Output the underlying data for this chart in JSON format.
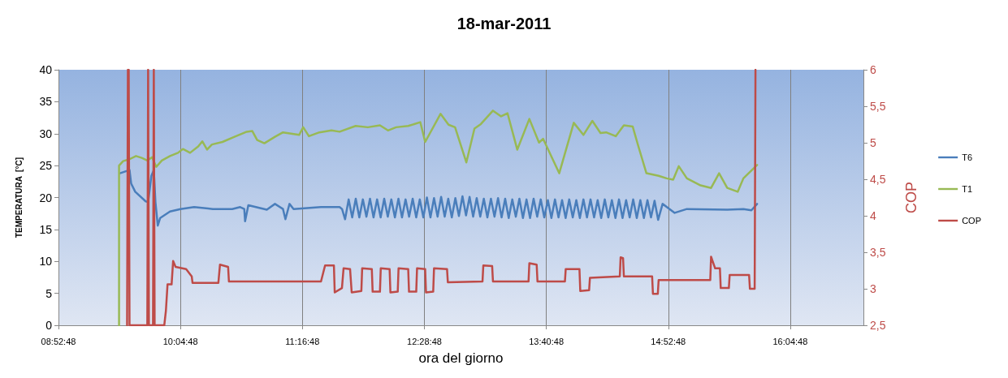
{
  "chart_data": {
    "type": "line",
    "title": "18-mar-2011",
    "xlabel": "ora del giorno",
    "ylabel": "TEMPERATURA  [°C]",
    "y2label": "COP",
    "xlim": [
      8.88,
      16.8
    ],
    "xticks": [
      {
        "value": 8.88,
        "label": "08:52:48"
      },
      {
        "value": 10.08,
        "label": "10:04:48"
      },
      {
        "value": 11.28,
        "label": "11:16:48"
      },
      {
        "value": 12.48,
        "label": "12:28:48"
      },
      {
        "value": 13.68,
        "label": "13:40:48"
      },
      {
        "value": 14.88,
        "label": "14:52:48"
      },
      {
        "value": 16.08,
        "label": "16:04:48"
      }
    ],
    "ylim": [
      0,
      40
    ],
    "yticks": [
      0,
      5,
      10,
      15,
      20,
      25,
      30,
      35,
      40
    ],
    "y2lim": [
      2.5,
      6
    ],
    "y2ticks": [
      {
        "value": 2.5,
        "label": "2,5"
      },
      {
        "value": 3,
        "label": "3"
      },
      {
        "value": 3.5,
        "label": "3,5"
      },
      {
        "value": 4,
        "label": "4"
      },
      {
        "value": 4.5,
        "label": "4,5"
      },
      {
        "value": 5,
        "label": "5"
      },
      {
        "value": 5.5,
        "label": "5,5"
      },
      {
        "value": 6,
        "label": "6"
      }
    ],
    "grid": "x",
    "legend": "right",
    "marker": "none",
    "line_style": "solid",
    "series": [
      {
        "name": "T6",
        "color": "#4a7ebb",
        "x": [
          9.484,
          9.579,
          9.595,
          9.635,
          9.738,
          9.762,
          9.794,
          9.818,
          9.834,
          9.857,
          9.881,
          9.977,
          10.08,
          10.215,
          10.398,
          10.589,
          10.668,
          10.708,
          10.716,
          10.748,
          10.93,
          11.01,
          11.089,
          11.113,
          11.153,
          11.193,
          11.463,
          11.646,
          11.67,
          11.7,
          11.735,
          11.77,
          11.805,
          11.84,
          11.875,
          11.91,
          11.945,
          11.98,
          12.015,
          12.05,
          12.085,
          12.12,
          12.155,
          12.19,
          12.225,
          12.26,
          12.295,
          12.33,
          12.365,
          12.4,
          12.435,
          12.47,
          12.505,
          12.54,
          12.575,
          12.61,
          12.645,
          12.68,
          12.715,
          12.75,
          12.785,
          12.82,
          12.855,
          12.89,
          12.925,
          12.96,
          12.995,
          13.03,
          13.065,
          13.1,
          13.135,
          13.17,
          13.205,
          13.24,
          13.275,
          13.31,
          13.345,
          13.38,
          13.415,
          13.45,
          13.485,
          13.52,
          13.555,
          13.59,
          13.625,
          13.66,
          13.695,
          13.73,
          13.765,
          13.8,
          13.835,
          13.87,
          13.905,
          13.94,
          13.975,
          14.01,
          14.045,
          14.08,
          14.115,
          14.15,
          14.185,
          14.22,
          14.255,
          14.29,
          14.325,
          14.36,
          14.395,
          14.43,
          14.465,
          14.5,
          14.535,
          14.57,
          14.605,
          14.64,
          14.675,
          14.71,
          14.745,
          14.78,
          14.824,
          14.943,
          15.063,
          15.46,
          15.619,
          15.698,
          15.754
        ],
        "values": [
          23.8,
          24.3,
          22.2,
          20.9,
          19.4,
          19.3,
          23.4,
          24.3,
          19.3,
          15.6,
          16.8,
          17.8,
          18.2,
          18.5,
          18.2,
          18.2,
          18.5,
          18.2,
          16.3,
          18.8,
          18.1,
          19.0,
          18.2,
          16.6,
          19.0,
          18.2,
          18.5,
          18.5,
          18.2,
          16.6,
          19.7,
          16.9,
          19.8,
          16.9,
          19.7,
          17.0,
          19.8,
          16.9,
          19.7,
          16.9,
          19.8,
          17.0,
          19.7,
          16.9,
          19.8,
          16.9,
          19.7,
          17.0,
          19.8,
          16.9,
          19.7,
          16.9,
          20.0,
          16.9,
          19.9,
          17.0,
          20.1,
          17.0,
          19.8,
          16.9,
          19.9,
          17.1,
          20.2,
          17.2,
          20.1,
          17.0,
          19.9,
          17.0,
          19.8,
          16.9,
          19.8,
          17.0,
          19.9,
          16.9,
          19.8,
          16.8,
          19.7,
          17.0,
          19.8,
          16.8,
          19.7,
          16.8,
          19.8,
          17.0,
          19.7,
          16.9,
          19.6,
          16.8,
          19.7,
          16.9,
          19.6,
          16.8,
          19.7,
          16.9,
          19.6,
          16.8,
          19.7,
          16.9,
          19.7,
          16.9,
          19.6,
          16.8,
          19.7,
          16.9,
          19.6,
          16.8,
          19.7,
          16.8,
          19.6,
          16.9,
          19.7,
          16.8,
          19.6,
          16.8,
          19.6,
          16.9,
          19.5,
          16.5,
          19.0,
          17.6,
          18.2,
          18.1,
          18.2,
          18.0,
          19.0
        ]
      },
      {
        "name": "T1",
        "color": "#98b954",
        "x": [
          9.476,
          9.476,
          9.516,
          9.579,
          9.643,
          9.699,
          9.754,
          9.802,
          9.842,
          9.897,
          9.977,
          10.056,
          10.104,
          10.175,
          10.255,
          10.295,
          10.342,
          10.39,
          10.493,
          10.612,
          10.732,
          10.787,
          10.835,
          10.906,
          11.01,
          11.089,
          11.169,
          11.248,
          11.288,
          11.344,
          11.447,
          11.566,
          11.646,
          11.804,
          11.924,
          12.043,
          12.122,
          12.202,
          12.321,
          12.44,
          12.488,
          12.639,
          12.718,
          12.782,
          12.893,
          12.973,
          13.036,
          13.155,
          13.235,
          13.298,
          13.394,
          13.513,
          13.608,
          13.648,
          13.807,
          13.95,
          14.045,
          14.133,
          14.213,
          14.268,
          14.363,
          14.443,
          14.53,
          14.586,
          14.665,
          14.785,
          14.864,
          14.928,
          14.983,
          15.063,
          15.198,
          15.301,
          15.38,
          15.46,
          15.563,
          15.619,
          15.754
        ],
        "values": [
          0,
          25,
          25.7,
          26,
          26.5,
          26.2,
          25.8,
          26.3,
          24.8,
          25.8,
          26.5,
          27,
          27.6,
          27,
          28,
          28.8,
          27.5,
          28.3,
          28.7,
          29.5,
          30.3,
          30.4,
          29,
          28.5,
          29.5,
          30.2,
          30,
          29.8,
          31,
          29.6,
          30.2,
          30.5,
          30.3,
          31.2,
          31,
          31.3,
          30.5,
          31,
          31.2,
          31.8,
          28.7,
          33.1,
          31.4,
          31,
          25.5,
          30.8,
          31.5,
          33.6,
          32.7,
          33.2,
          27.5,
          32.3,
          28.6,
          29.2,
          23.8,
          31.7,
          29.8,
          32,
          30.1,
          30.2,
          29.6,
          31.3,
          31.1,
          28,
          23.8,
          23.4,
          23,
          22.8,
          24.9,
          23,
          21.9,
          21.5,
          23.8,
          21.5,
          20.9,
          23,
          25.1
        ]
      },
      {
        "name": "COP",
        "color": "#be4b48",
        "axis": "y2",
        "x": [
          9.555,
          9.563,
          9.571,
          9.579,
          9.754,
          9.762,
          9.77,
          9.81,
          9.818,
          9.826,
          9.921,
          9.937,
          9.953,
          9.993,
          10.008,
          10.032,
          10.136,
          10.191,
          10.199,
          10.453,
          10.469,
          10.549,
          10.557,
          11.463,
          11.503,
          11.59,
          11.598,
          11.669,
          11.685,
          11.749,
          11.765,
          11.86,
          11.868,
          11.963,
          11.971,
          12.043,
          12.051,
          12.138,
          12.146,
          12.218,
          12.226,
          12.321,
          12.329,
          12.4,
          12.408,
          12.488,
          12.496,
          12.567,
          12.575,
          12.703,
          12.711,
          13.052,
          13.06,
          13.147,
          13.155,
          13.505,
          13.513,
          13.585,
          13.593,
          13.863,
          13.871,
          14.006,
          14.014,
          14.101,
          14.109,
          14.403,
          14.411,
          14.435,
          14.443,
          14.721,
          14.729,
          14.777,
          14.785,
          15.293,
          15.301,
          15.341,
          15.388,
          15.396,
          15.476,
          15.484,
          15.675,
          15.683,
          15.73,
          15.738
        ],
        "values": [
          2.5,
          6,
          6,
          2.5,
          2.5,
          6,
          2.5,
          2.5,
          6,
          2.5,
          2.5,
          2.7,
          3.06,
          3.06,
          3.38,
          3.3,
          3.27,
          3.17,
          3.08,
          3.08,
          3.33,
          3.3,
          3.1,
          3.1,
          3.32,
          3.32,
          2.95,
          3.01,
          3.28,
          3.27,
          2.95,
          2.97,
          3.28,
          3.27,
          2.96,
          2.96,
          3.28,
          3.27,
          2.95,
          2.96,
          3.28,
          3.27,
          2.96,
          2.96,
          3.28,
          3.27,
          2.95,
          2.96,
          3.28,
          3.27,
          3.09,
          3.1,
          3.32,
          3.31,
          3.1,
          3.1,
          3.35,
          3.33,
          3.1,
          3.1,
          3.27,
          3.27,
          2.97,
          2.98,
          3.15,
          3.17,
          3.43,
          3.42,
          3.17,
          3.17,
          2.93,
          2.93,
          3.12,
          3.12,
          3.44,
          3.28,
          3.28,
          3.01,
          3.01,
          3.19,
          3.19,
          3.0,
          3.0,
          6
        ]
      }
    ]
  }
}
